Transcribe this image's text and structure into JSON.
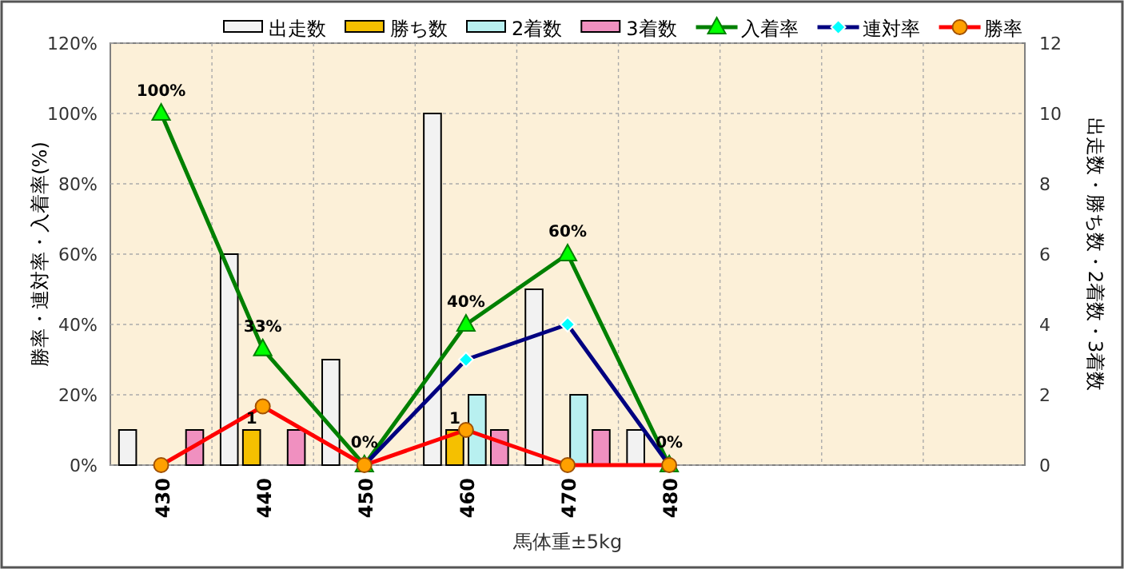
{
  "chart_data": {
    "type": "bar",
    "xlabel": "馬体重±5kg",
    "ylabel": "勝率・連対率・入着率(%)",
    "y2label": "出走数・勝ち数・2着数・3着数",
    "categories": [
      "430",
      "440",
      "450",
      "460",
      "470",
      "480",
      null,
      null,
      null
    ],
    "series": [
      {
        "name": "出走数",
        "axis": "y2",
        "color": "#f2f2f2",
        "values": [
          1,
          6,
          3,
          10,
          5,
          1,
          null,
          null,
          null
        ]
      },
      {
        "name": "勝ち数",
        "axis": "y2",
        "color": "#f5c000",
        "values": [
          0,
          1,
          0,
          1,
          0,
          0,
          null,
          null,
          null
        ],
        "value_labels": [
          null,
          "1",
          null,
          "1",
          null,
          null,
          null,
          null,
          null
        ]
      },
      {
        "name": "2着数",
        "axis": "y2",
        "color": "#b8f0f0",
        "values": [
          0,
          0,
          0,
          2,
          2,
          0,
          null,
          null,
          null
        ]
      },
      {
        "name": "3着数",
        "axis": "y2",
        "color": "#f090c0",
        "values": [
          1,
          1,
          0,
          1,
          1,
          0,
          null,
          null,
          null
        ]
      },
      {
        "name": "入着率",
        "type": "line",
        "color": "#008000",
        "marker": "triangle",
        "values": [
          100,
          33,
          0,
          40,
          60,
          0,
          null,
          null,
          null
        ],
        "value_labels": [
          "100%",
          "33%",
          "0%",
          "40%",
          "60%",
          "0%",
          null,
          null,
          null
        ]
      },
      {
        "name": "連対率",
        "type": "line",
        "color": "#000080",
        "marker": "diamond",
        "values": [
          null,
          null,
          0,
          30,
          40,
          0,
          null,
          null,
          null
        ]
      },
      {
        "name": "勝率",
        "type": "line",
        "color": "#ff0000",
        "marker": "circle",
        "values": [
          0,
          16.7,
          0,
          10,
          0,
          0,
          null,
          null,
          null
        ]
      }
    ],
    "ylim": [
      0,
      120
    ],
    "yticks": [
      {
        "value": 0,
        "label": "0%"
      },
      {
        "value": 20,
        "label": "20%"
      },
      {
        "value": 40,
        "label": "40%"
      },
      {
        "value": 60,
        "label": "60%"
      },
      {
        "value": 80,
        "label": "80%"
      },
      {
        "value": 100,
        "label": "100%"
      },
      {
        "value": 120,
        "label": "120%"
      }
    ],
    "y2lim": [
      0,
      12
    ],
    "y2ticks": [
      0,
      2,
      4,
      6,
      8,
      10,
      12
    ],
    "grid": true,
    "legend": "top"
  }
}
